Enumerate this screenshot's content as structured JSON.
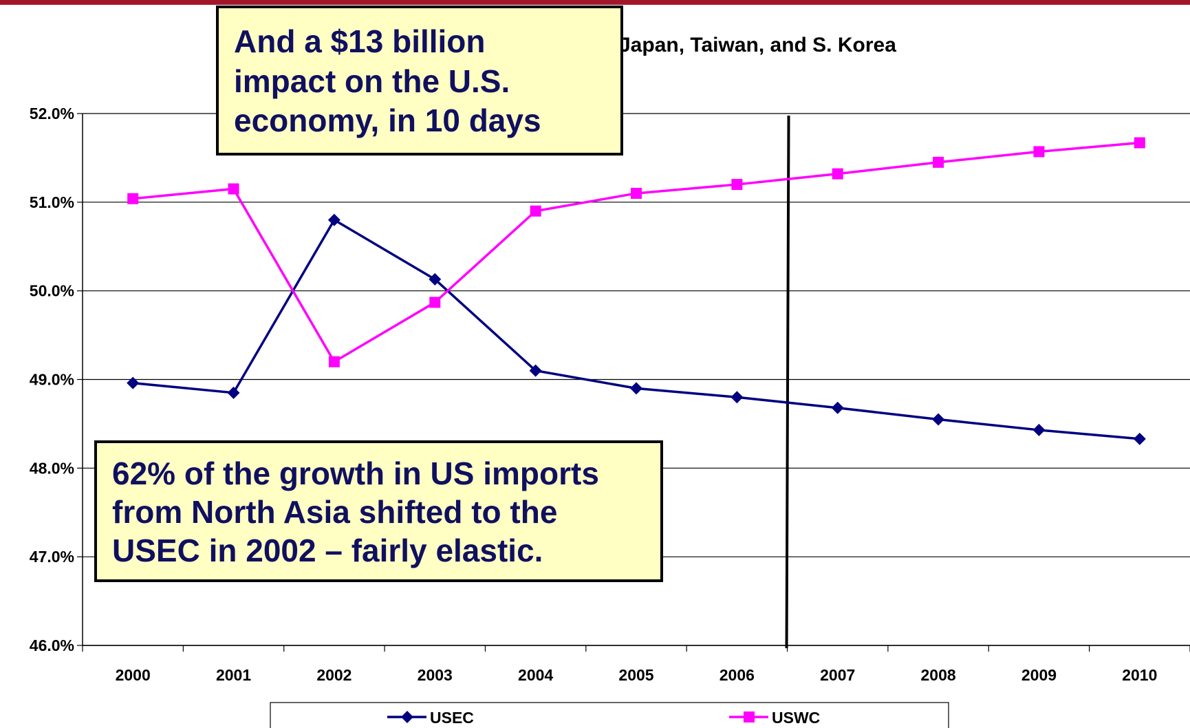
{
  "chart_data": {
    "type": "line",
    "title": "Japan, Taiwan, and S. Korea",
    "x": [
      "2000",
      "2001",
      "2002",
      "2003",
      "2004",
      "2005",
      "2006",
      "2007",
      "2008",
      "2009",
      "2010"
    ],
    "ylim": [
      46.0,
      52.0
    ],
    "yticks": [
      "46.0%",
      "47.0%",
      "48.0%",
      "49.0%",
      "50.0%",
      "51.0%",
      "52.0%"
    ],
    "grid": true,
    "legend_position": "bottom",
    "series": [
      {
        "name": "USEC",
        "color": "#000080",
        "marker": "diamond",
        "values": [
          48.96,
          48.85,
          50.8,
          50.13,
          49.1,
          48.9,
          48.8,
          48.68,
          48.55,
          48.43,
          48.33
        ]
      },
      {
        "name": "USWC",
        "color": "#ff00ff",
        "marker": "square",
        "values": [
          51.04,
          51.15,
          49.2,
          49.87,
          50.9,
          51.1,
          51.2,
          51.32,
          51.45,
          51.57,
          51.67
        ]
      }
    ],
    "vertical_marker_between": [
      "2006",
      "2007"
    ]
  },
  "annotations": {
    "top_callout": [
      "And a $13 billion",
      "impact on the U.S.",
      "economy, in 10 days"
    ],
    "bottom_callout": [
      "62% of the growth in US imports",
      "from North Asia shifted to the",
      "USEC in 2002 – fairly elastic."
    ]
  },
  "colors": {
    "top_bar": "#a3162a",
    "callout_fill": "#ffffc3",
    "callout_text": "#101060"
  }
}
